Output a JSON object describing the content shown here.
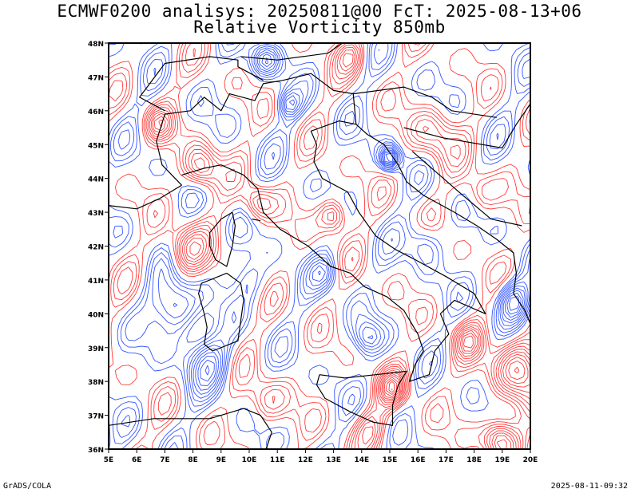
{
  "title_line1": "ECMWF0200 analisys: 20250811@00 FcT: 2025-08-13+06",
  "title_line2": "Relative Vorticity 850mb",
  "lat_labels": [
    "48N",
    "47N",
    "46N",
    "45N",
    "44N",
    "43N",
    "42N",
    "41N",
    "40N",
    "39N",
    "38N",
    "37N",
    "36N"
  ],
  "lon_labels": [
    "5E",
    "6E",
    "7E",
    "8E",
    "9E",
    "10E",
    "11E",
    "12E",
    "13E",
    "14E",
    "15E",
    "16E",
    "17E",
    "18E",
    "19E",
    "20E"
  ],
  "footer_left": "GrADS/COLA",
  "footer_right": "2025-08-11-09:32",
  "colors": {
    "positive": "#ff3b3b",
    "negative": "#3355ff",
    "coast": "#000000",
    "zero": "#c08080"
  }
}
